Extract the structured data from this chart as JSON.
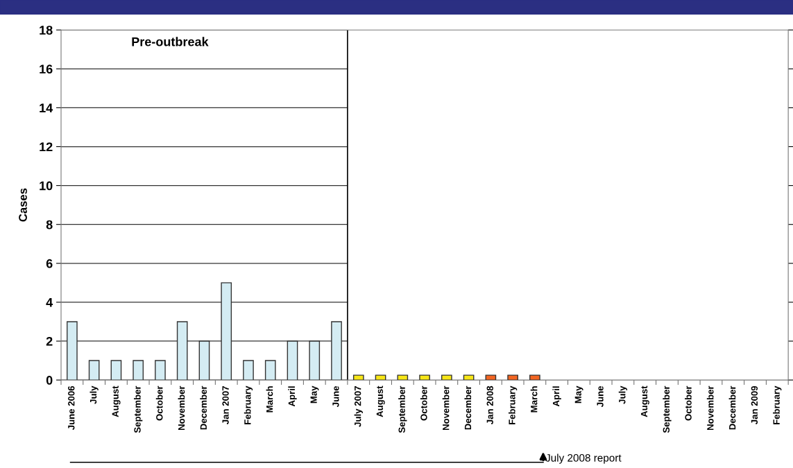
{
  "chart_data": {
    "type": "bar",
    "ylabel": "Cases",
    "categories": [
      "June 2006",
      "July",
      "August",
      "September",
      "October",
      "November",
      "December",
      "Jan 2007",
      "February",
      "March",
      "April",
      "May",
      "June",
      "July 2007",
      "August",
      "September",
      "October",
      "November",
      "December",
      "Jan 2008",
      "February",
      "March",
      "April",
      "May",
      "June",
      "July",
      "August",
      "September",
      "October",
      "November",
      "December",
      "Jan 2009",
      "February"
    ],
    "values": [
      3,
      1,
      1,
      1,
      1,
      3,
      2,
      5,
      1,
      1,
      2,
      2,
      3,
      0.25,
      0.25,
      0.25,
      0.25,
      0.25,
      0.25,
      0.25,
      0.25,
      0.25,
      null,
      null,
      null,
      null,
      null,
      null,
      null,
      null,
      null,
      null,
      null
    ],
    "colors": [
      "#d4ecf3",
      "#d4ecf3",
      "#d4ecf3",
      "#d4ecf3",
      "#d4ecf3",
      "#d4ecf3",
      "#d4ecf3",
      "#d4ecf3",
      "#d4ecf3",
      "#d4ecf3",
      "#d4ecf3",
      "#d4ecf3",
      "#d4ecf3",
      "#f7e617",
      "#f7e617",
      "#f7e617",
      "#f7e617",
      "#f7e617",
      "#f7e617",
      "#f26522",
      "#f26522",
      "#f26522",
      null,
      null,
      null,
      null,
      null,
      null,
      null,
      null,
      null,
      null,
      null
    ],
    "ylim": [
      0,
      18
    ],
    "yticks": [
      0,
      2,
      4,
      6,
      8,
      10,
      12,
      14,
      16,
      18
    ],
    "grid": "y",
    "ref_lines": [
      {
        "axis": "x",
        "value": "July 2007",
        "label": "Pre-outbreak"
      }
    ],
    "annotations": [
      "July 2008 report"
    ]
  }
}
